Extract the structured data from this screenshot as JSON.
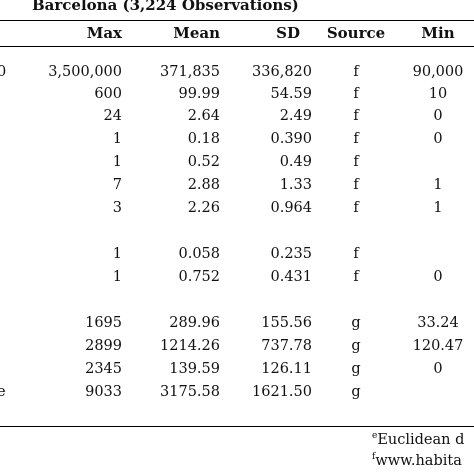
{
  "table": {
    "title": "Barcelona (3,224 Observations)",
    "headers": {
      "max": "Max",
      "mean": "Mean",
      "sd": "SD",
      "source": "Source",
      "min": "Min"
    },
    "rows": [
      {
        "edge": "0",
        "max": "3,500,000",
        "mean": "371,835",
        "sd": "336,820",
        "source": "f",
        "min": "90,000"
      },
      {
        "edge": "",
        "max": "600",
        "mean": "99.99",
        "sd": "54.59",
        "source": "f",
        "min": "10"
      },
      {
        "edge": "",
        "max": "24",
        "mean": "2.64",
        "sd": "2.49",
        "source": "f",
        "min": "0"
      },
      {
        "edge": "",
        "max": "1",
        "mean": "0.18",
        "sd": "0.390",
        "source": "f",
        "min": "0"
      },
      {
        "edge": "",
        "max": "1",
        "mean": "0.52",
        "sd": "0.49",
        "source": "f",
        "min": ""
      },
      {
        "edge": "",
        "max": "7",
        "mean": "2.88",
        "sd": "1.33",
        "source": "f",
        "min": "1"
      },
      {
        "edge": "",
        "max": "3",
        "mean": "2.26",
        "sd": "0.964",
        "source": "f",
        "min": "1"
      },
      {
        "edge": "",
        "max": "1",
        "mean": "0.058",
        "sd": "0.235",
        "source": "f",
        "min": ""
      },
      {
        "edge": "",
        "max": "1",
        "mean": "0.752",
        "sd": "0.431",
        "source": "f",
        "min": "0"
      },
      {
        "edge": "",
        "max": "1695",
        "mean": "289.96",
        "sd": "155.56",
        "source": "g",
        "min": "33.24"
      },
      {
        "edge": "",
        "max": "2899",
        "mean": "1214.26",
        "sd": "737.78",
        "source": "g",
        "min": "120.47"
      },
      {
        "edge": "",
        "max": "2345",
        "mean": "139.59",
        "sd": "126.11",
        "source": "g",
        "min": "0"
      },
      {
        "edge": "e",
        "max": "9033",
        "mean": "3175.58",
        "sd": "1621.50",
        "source": "g",
        "min": ""
      }
    ]
  },
  "footnotes": [
    {
      "mark": "e",
      "text": "Euclidean d"
    },
    {
      "mark": "f",
      "text": "www.habita"
    }
  ]
}
